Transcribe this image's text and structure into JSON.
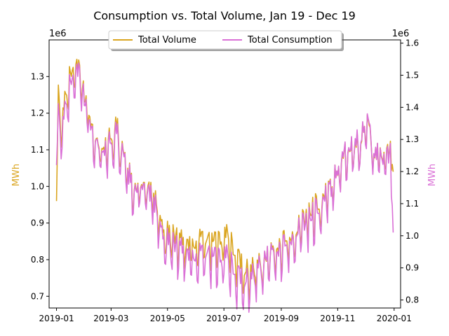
{
  "chart_data": {
    "type": "line",
    "title": "Consumption vs. Total Volume, Jan 19 - Dec 19",
    "xlabel": "",
    "x_range": [
      "2018-12-24",
      "2020-01-08"
    ],
    "x_ticks": [
      "2019-01",
      "2019-03",
      "2019-05",
      "2019-07",
      "2019-09",
      "2019-11",
      "2020-01"
    ],
    "y_left": {
      "label": "MWh",
      "color": "#DAA520",
      "offset_label": "1e6",
      "range": [
        0.668,
        1.4
      ],
      "ticks": [
        "0.7",
        "0.8",
        "0.9",
        "1.0",
        "1.1",
        "1.2",
        "1.3"
      ]
    },
    "y_right": {
      "label": "MWh",
      "color": "#DA70D6",
      "offset_label": "1e6",
      "range": [
        0.775,
        1.61
      ],
      "ticks": [
        "0.8",
        "0.9",
        "1.0",
        "1.1",
        "1.2",
        "1.3",
        "1.4",
        "1.5",
        "1.6"
      ]
    },
    "legend": {
      "placement": "top-center",
      "columns": 2
    },
    "series": [
      {
        "name": "Total Volume",
        "axis": "left",
        "color": "#DAA520",
        "anchors": [
          [
            "2019-01-01",
            0.96
          ],
          [
            "2019-01-03",
            1.25
          ],
          [
            "2019-01-06",
            1.15
          ],
          [
            "2019-01-10",
            1.26
          ],
          [
            "2019-01-15",
            1.3
          ],
          [
            "2019-01-20",
            1.35
          ],
          [
            "2019-01-25",
            1.33
          ],
          [
            "2019-01-30",
            1.26
          ],
          [
            "2019-02-05",
            1.21
          ],
          [
            "2019-02-12",
            1.13
          ],
          [
            "2019-02-20",
            1.11
          ],
          [
            "2019-03-01",
            1.14
          ],
          [
            "2019-03-08",
            1.17
          ],
          [
            "2019-03-15",
            1.07
          ],
          [
            "2019-03-25",
            1.01
          ],
          [
            "2019-04-05",
            1.0
          ],
          [
            "2019-04-15",
            0.99
          ],
          [
            "2019-04-25",
            0.9
          ],
          [
            "2019-05-05",
            0.87
          ],
          [
            "2019-05-15",
            0.86
          ],
          [
            "2019-05-25",
            0.85
          ],
          [
            "2019-06-05",
            0.86
          ],
          [
            "2019-06-15",
            0.85
          ],
          [
            "2019-06-25",
            0.85
          ],
          [
            "2019-07-05",
            0.87
          ],
          [
            "2019-07-15",
            0.81
          ],
          [
            "2019-07-25",
            0.77
          ],
          [
            "2019-08-05",
            0.79
          ],
          [
            "2019-08-15",
            0.8
          ],
          [
            "2019-08-25",
            0.83
          ],
          [
            "2019-09-05",
            0.86
          ],
          [
            "2019-09-15",
            0.88
          ],
          [
            "2019-09-25",
            0.91
          ],
          [
            "2019-10-05",
            0.95
          ],
          [
            "2019-10-15",
            0.97
          ],
          [
            "2019-10-25",
            1.0
          ],
          [
            "2019-11-05",
            1.08
          ],
          [
            "2019-11-15",
            1.1
          ],
          [
            "2019-11-25",
            1.13
          ],
          [
            "2019-12-01",
            1.2
          ],
          [
            "2019-12-05",
            1.14
          ],
          [
            "2019-12-12",
            1.1
          ],
          [
            "2019-12-20",
            1.08
          ],
          [
            "2019-12-28",
            1.1
          ],
          [
            "2019-12-31",
            1.04
          ]
        ]
      },
      {
        "name": "Total Consumption",
        "axis": "right",
        "color": "#DA70D6",
        "anchors": [
          [
            "2019-01-01",
            1.22
          ],
          [
            "2019-01-03",
            1.38
          ],
          [
            "2019-01-06",
            1.3
          ],
          [
            "2019-01-10",
            1.42
          ],
          [
            "2019-01-15",
            1.47
          ],
          [
            "2019-01-20",
            1.53
          ],
          [
            "2019-01-25",
            1.52
          ],
          [
            "2019-01-30",
            1.44
          ],
          [
            "2019-02-05",
            1.38
          ],
          [
            "2019-02-12",
            1.3
          ],
          [
            "2019-02-20",
            1.27
          ],
          [
            "2019-03-01",
            1.3
          ],
          [
            "2019-03-08",
            1.33
          ],
          [
            "2019-03-15",
            1.23
          ],
          [
            "2019-03-25",
            1.16
          ],
          [
            "2019-04-05",
            1.15
          ],
          [
            "2019-04-15",
            1.13
          ],
          [
            "2019-04-25",
            1.02
          ],
          [
            "2019-05-05",
            0.98
          ],
          [
            "2019-05-15",
            0.97
          ],
          [
            "2019-05-25",
            0.95
          ],
          [
            "2019-06-05",
            0.95
          ],
          [
            "2019-06-15",
            0.94
          ],
          [
            "2019-06-25",
            0.93
          ],
          [
            "2019-07-05",
            0.94
          ],
          [
            "2019-07-15",
            0.88
          ],
          [
            "2019-07-25",
            0.86
          ],
          [
            "2019-08-05",
            0.9
          ],
          [
            "2019-08-15",
            0.93
          ],
          [
            "2019-08-25",
            0.95
          ],
          [
            "2019-09-05",
            0.98
          ],
          [
            "2019-09-15",
            1.01
          ],
          [
            "2019-09-25",
            1.04
          ],
          [
            "2019-10-05",
            1.08
          ],
          [
            "2019-10-15",
            1.11
          ],
          [
            "2019-10-25",
            1.15
          ],
          [
            "2019-11-05",
            1.25
          ],
          [
            "2019-11-15",
            1.27
          ],
          [
            "2019-11-25",
            1.31
          ],
          [
            "2019-12-01",
            1.38
          ],
          [
            "2019-12-05",
            1.32
          ],
          [
            "2019-12-12",
            1.27
          ],
          [
            "2019-12-20",
            1.24
          ],
          [
            "2019-12-28",
            1.26
          ],
          [
            "2019-12-31",
            1.01
          ]
        ]
      }
    ]
  }
}
